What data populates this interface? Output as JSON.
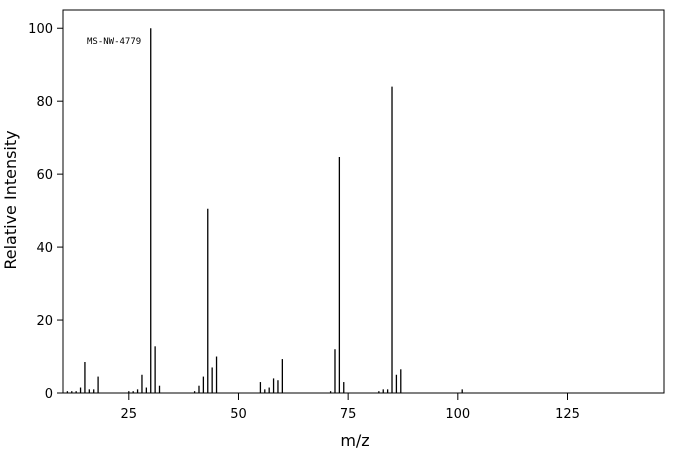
{
  "chart_data": {
    "type": "bar",
    "annotation": "MS-NW-4779",
    "x_label": "m/z",
    "y_label": "Relative Intensity",
    "x": [
      11,
      12,
      13,
      14,
      15,
      16,
      17,
      18,
      25,
      26,
      27,
      28,
      29,
      30,
      31,
      32,
      40,
      41,
      42,
      43,
      44,
      45,
      55,
      56,
      57,
      58,
      59,
      60,
      71,
      72,
      73,
      74,
      82,
      83,
      84,
      85,
      86,
      87,
      101
    ],
    "values": [
      0.5,
      0.5,
      0.5,
      1.5,
      8.5,
      1,
      1,
      4.5,
      0.5,
      0.5,
      1,
      5,
      1.5,
      100,
      12.8,
      2,
      0.5,
      2,
      4.5,
      50.5,
      7,
      10,
      3,
      1,
      1.5,
      4,
      3.5,
      9.3,
      0.5,
      12,
      64.7,
      3,
      0.5,
      1,
      1,
      84,
      5,
      6.5,
      1
    ],
    "color": "#000000",
    "xlim": [
      10,
      147
    ],
    "xticks": [
      25,
      50,
      75,
      100,
      125
    ],
    "ylim": [
      0,
      105
    ],
    "yticks": [
      0,
      20,
      40,
      60,
      80,
      100
    ]
  }
}
